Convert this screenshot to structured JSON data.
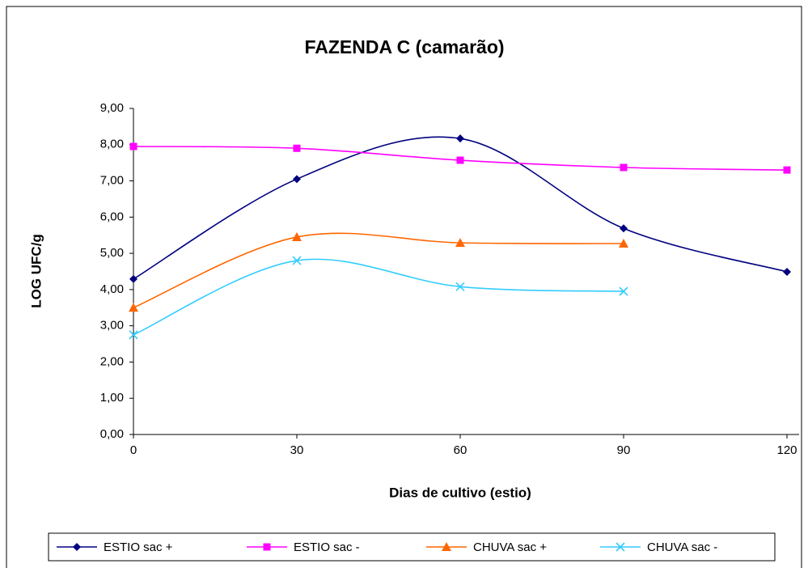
{
  "chart_data": {
    "type": "line",
    "title": "FAZENDA C (camarão)",
    "x_label": "Dias de cultivo (estio)",
    "y_label": "LOG UFC/g",
    "x": [
      0,
      30,
      60,
      90,
      120
    ],
    "series": [
      {
        "name": "ESTIO sac +",
        "color": "#000080",
        "marker": "diamond",
        "values": [
          4.29,
          7.05,
          8.17,
          5.69,
          4.49
        ]
      },
      {
        "name": "ESTIO sac -",
        "color": "#ff00ff",
        "marker": "square",
        "values": [
          7.95,
          7.9,
          7.57,
          7.37,
          7.3
        ]
      },
      {
        "name": "CHUVA sac +",
        "color": "#ff6600",
        "marker": "triangle",
        "values": [
          3.5,
          5.45,
          5.29,
          5.27,
          null
        ]
      },
      {
        "name": "CHUVA sac -",
        "color": "#33ccff",
        "marker": "x",
        "values": [
          2.75,
          4.8,
          4.08,
          3.95,
          null
        ]
      }
    ],
    "smooth": true,
    "xlim": [
      0,
      120
    ],
    "xticks": [
      0,
      30,
      60,
      90,
      120
    ],
    "ylim": [
      0,
      9
    ],
    "yticks": [
      {
        "value": 0,
        "label": "0,00"
      },
      {
        "value": 1,
        "label": "1,00"
      },
      {
        "value": 2,
        "label": "2,00"
      },
      {
        "value": 3,
        "label": "3,00"
      },
      {
        "value": 4,
        "label": "4,00"
      },
      {
        "value": 5,
        "label": "5,00"
      },
      {
        "value": 6,
        "label": "6,00"
      },
      {
        "value": 7,
        "label": "7,00"
      },
      {
        "value": 8,
        "label": "8,00"
      },
      {
        "value": 9,
        "label": "9,00"
      }
    ],
    "legend": "bottom"
  }
}
